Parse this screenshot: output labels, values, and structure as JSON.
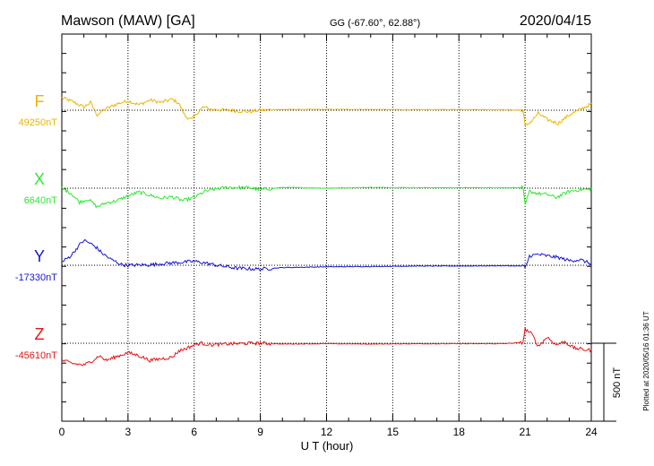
{
  "header": {
    "station": "Mawson (MAW)  [GA]",
    "coords": "GG (-67.60°,  62.88°)",
    "date": "2020/04/15"
  },
  "footer": {
    "xlabel": "U T (hour)",
    "plotted": "Plotted at 2020/05/16 01:36 UT",
    "scale_label": "500 nT"
  },
  "chart_data": {
    "type": "line",
    "xlim": [
      0,
      24
    ],
    "xticks": [
      "0",
      "3",
      "6",
      "9",
      "12",
      "15",
      "18",
      "21",
      "24"
    ],
    "grid": true,
    "scale_bar_nT": 500,
    "series": [
      {
        "name": "F",
        "baseline_label": "49250nT",
        "color": "#f0b400",
        "baseline_nT": 49250,
        "x": [
          0,
          0.5,
          1.0,
          1.3,
          1.6,
          2.0,
          2.5,
          3.0,
          3.5,
          4.0,
          4.5,
          5.0,
          5.3,
          5.6,
          5.9,
          6.1,
          6.4,
          6.8,
          7.5,
          8.5,
          9.0,
          10,
          12,
          14,
          16,
          18,
          20,
          20.9,
          21.0,
          21.3,
          21.6,
          22.0,
          22.5,
          23.0,
          23.5,
          24.0
        ],
        "y": [
          80,
          55,
          20,
          50,
          -30,
          10,
          40,
          60,
          35,
          65,
          50,
          70,
          45,
          -40,
          -60,
          -25,
          20,
          5,
          0,
          -10,
          0,
          5,
          5,
          5,
          3,
          5,
          3,
          0,
          -100,
          -70,
          -20,
          -60,
          -85,
          -30,
          5,
          40
        ]
      },
      {
        "name": "X",
        "baseline_label": "6640nT",
        "color": "#2ee82e",
        "baseline_nT": 6640,
        "x": [
          0,
          0.4,
          0.8,
          1.2,
          1.6,
          2.0,
          2.5,
          3.0,
          3.5,
          4.0,
          4.5,
          5.0,
          5.5,
          6.0,
          6.5,
          7.0,
          7.5,
          8.5,
          9.0,
          10,
          12,
          14,
          16,
          18,
          20,
          20.9,
          21.0,
          21.2,
          21.6,
          22.0,
          22.4,
          23.0,
          23.5,
          24.0
        ],
        "y": [
          0,
          -30,
          -90,
          -70,
          -120,
          -95,
          -80,
          -50,
          -25,
          -45,
          -65,
          -55,
          -80,
          -60,
          -20,
          -5,
          5,
          3,
          -10,
          5,
          0,
          5,
          3,
          3,
          3,
          3,
          -110,
          -20,
          -35,
          -40,
          -60,
          -20,
          -10,
          -5
        ]
      },
      {
        "name": "Y",
        "baseline_label": "-17330nT",
        "color": "#1515d8",
        "baseline_nT": -17330,
        "x": [
          0,
          0.4,
          0.8,
          1.0,
          1.3,
          1.6,
          1.8,
          2.2,
          2.7,
          3.0,
          3.5,
          4.0,
          4.5,
          5.0,
          5.5,
          6.0,
          6.5,
          7.0,
          7.5,
          8.0,
          9.0,
          10,
          12,
          14,
          16,
          18,
          20,
          20.9,
          21.0,
          21.2,
          21.6,
          22.0,
          22.5,
          23.0,
          23.5,
          24.0
        ],
        "y": [
          20,
          60,
          130,
          160,
          140,
          110,
          80,
          40,
          5,
          0,
          2,
          3,
          10,
          15,
          20,
          25,
          15,
          0,
          -10,
          -20,
          -25,
          -15,
          -10,
          -8,
          -5,
          -5,
          -3,
          -5,
          -20,
          60,
          70,
          60,
          50,
          30,
          35,
          10
        ]
      },
      {
        "name": "Z",
        "baseline_label": "-45610nT",
        "color": "#e61414",
        "baseline_nT": -45610,
        "x": [
          0,
          0.5,
          1.0,
          1.3,
          1.7,
          2.0,
          2.4,
          3.0,
          3.5,
          4.0,
          4.5,
          5.0,
          5.3,
          5.7,
          6.0,
          6.3,
          6.8,
          7.5,
          8.5,
          9.0,
          10,
          12,
          14,
          16,
          18,
          20,
          20.9,
          21.0,
          21.3,
          21.6,
          22.0,
          22.4,
          22.8,
          23.2,
          23.6,
          24.0
        ],
        "y": [
          -110,
          -130,
          -140,
          -120,
          -80,
          -110,
          -90,
          -60,
          -80,
          -110,
          -100,
          -90,
          -50,
          -30,
          -10,
          0,
          -10,
          -5,
          0,
          0,
          -5,
          -3,
          -5,
          -3,
          -3,
          -3,
          5,
          90,
          60,
          -20,
          40,
          -10,
          10,
          -30,
          -40,
          -45
        ]
      }
    ]
  }
}
